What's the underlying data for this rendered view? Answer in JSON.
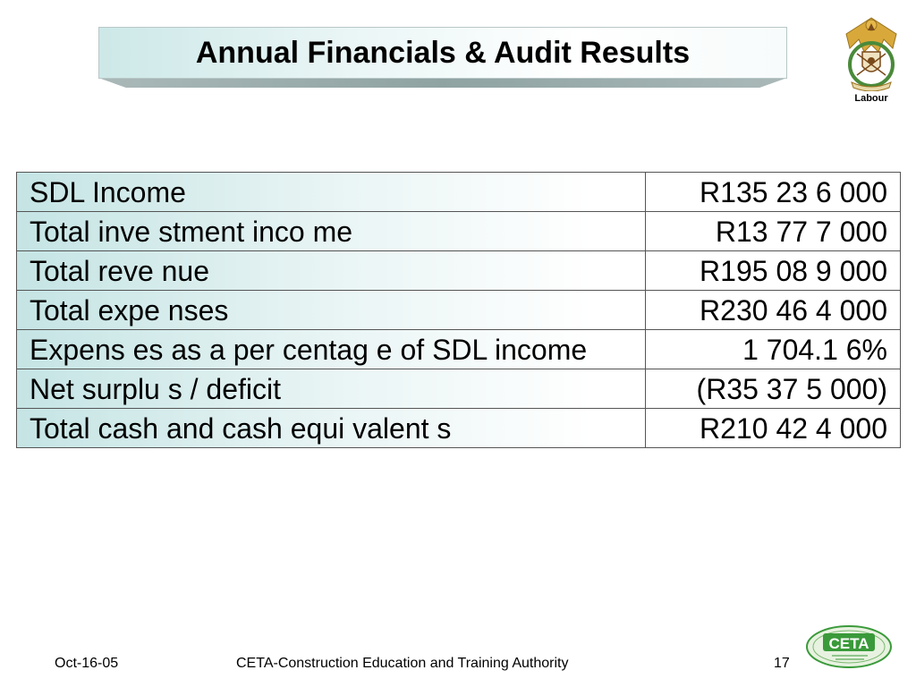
{
  "slide": {
    "title": "Annual Financials & Audit Results"
  },
  "header_logo": {
    "icon": "coat-of-arms-icon",
    "label": "Labour"
  },
  "table": {
    "rows": [
      {
        "label": "SDL Income",
        "value": "R135 23 6 000"
      },
      {
        "label": "Total inve stment inco me",
        "value": "R13 77 7 000"
      },
      {
        "label": "Total reve nue",
        "value": "R195 08 9 000"
      },
      {
        "label": "Total expe nses",
        "value": "R230 46 4 000"
      },
      {
        "label": "Expens es as a per centag e of SDL income",
        "value": "1 704.1 6%"
      },
      {
        "label": "Net surplu s / deficit",
        "value": "(R35 37 5 000)"
      },
      {
        "label": "Total cash and cash equi valent s",
        "value": "R210 42 4 000"
      }
    ]
  },
  "footer": {
    "date": "Oct-16-05",
    "organization": "CETA-Construction Education and Training Authority",
    "page_number": "17"
  },
  "footer_logo": {
    "icon": "ceta-logo-icon",
    "text": "CETA"
  },
  "colors": {
    "banner_gradient_start": "#cde8e8",
    "table_gradient_start": "#c5e4e4",
    "ceta_green": "#3a9a3a"
  }
}
